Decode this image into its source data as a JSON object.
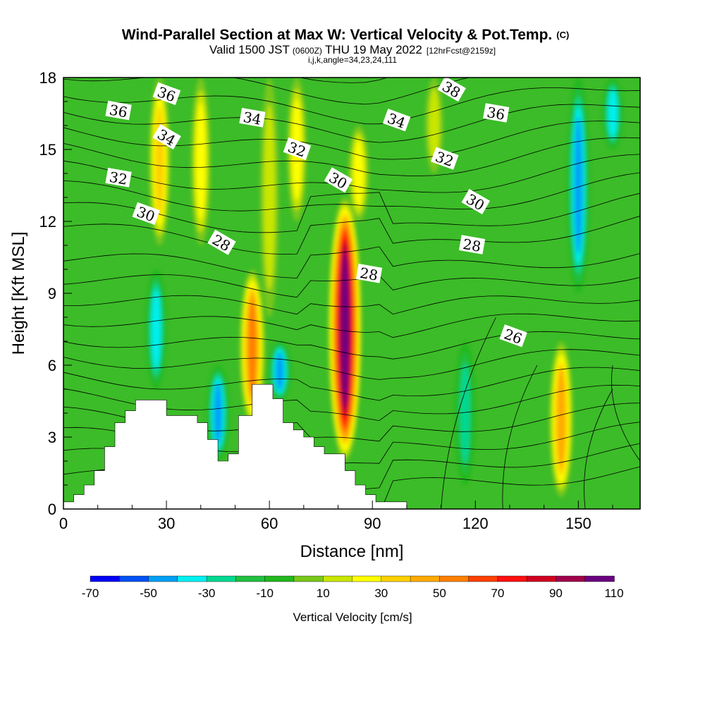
{
  "title": {
    "main": "Wind-Parallel Section at Max W: Vertical Velocity & Pot.Temp.",
    "main_tag": "(C)",
    "valid_a": "Valid 1500 JST",
    "valid_b": "(0600Z)",
    "valid_c": "THU 19 May 2022",
    "valid_d": "[12hrFcst@2159z]",
    "subline": "i,j,k,angle=34,23,24,111"
  },
  "chart_data": {
    "type": "heatmap",
    "xlabel": "Distance [nm]",
    "ylabel": "Height [Kft MSL]",
    "xlim": [
      0,
      168
    ],
    "ylim": [
      0,
      18
    ],
    "xticks": [
      0,
      30,
      60,
      90,
      120,
      150
    ],
    "xtick_labels": [
      "0",
      "30",
      "60",
      "90",
      "120",
      "150"
    ],
    "yticks": [
      0,
      3,
      6,
      9,
      12,
      15,
      18
    ],
    "ytick_labels": [
      "0",
      "3",
      "6",
      "9",
      "12",
      "15",
      "18"
    ],
    "colorbar": {
      "label": "Vertical Velocity [cm/s]",
      "levels": [
        -70,
        -60,
        -50,
        -40,
        -30,
        -20,
        -10,
        0,
        10,
        20,
        30,
        40,
        50,
        60,
        70,
        80,
        90,
        100,
        110
      ],
      "tick_labels": [
        "-70",
        "-50",
        "-30",
        "-10",
        "10",
        "30",
        "50",
        "70",
        "90",
        "110"
      ],
      "colors": [
        "#0000f5",
        "#0050f5",
        "#00a0f5",
        "#00f0f0",
        "#00d890",
        "#20c040",
        "#22b81e",
        "#78c81a",
        "#c8e600",
        "#ffff00",
        "#ffd000",
        "#ffaa00",
        "#ff8000",
        "#ff4000",
        "#ff1010",
        "#d00020",
        "#a0004a",
        "#6a0080"
      ]
    },
    "vertical_velocity_features": [
      {
        "x": 28,
        "y": [
          11,
          18
        ],
        "w": 35,
        "desc": "updraft"
      },
      {
        "x": 40,
        "y": [
          11,
          18
        ],
        "w": 25
      },
      {
        "x": 55,
        "y": [
          3.5,
          10
        ],
        "w": 60
      },
      {
        "x": 60,
        "y": [
          8,
          18
        ],
        "w": 20
      },
      {
        "x": 68,
        "y": [
          12,
          18
        ],
        "w": 25
      },
      {
        "x": 82,
        "y": [
          2,
          13
        ],
        "w": 110
      },
      {
        "x": 86,
        "y": [
          12,
          16
        ],
        "w": 30
      },
      {
        "x": 145,
        "y": [
          0.5,
          7
        ],
        "w": 50
      },
      {
        "x": 108,
        "y": [
          14,
          18
        ],
        "w": 15
      },
      {
        "x": 27,
        "y": [
          5,
          10
        ],
        "w": -35,
        "desc": "downdraft"
      },
      {
        "x": 45,
        "y": [
          2,
          6
        ],
        "w": -45
      },
      {
        "x": 63,
        "y": [
          4.5,
          7
        ],
        "w": -45
      },
      {
        "x": 117,
        "y": [
          1,
          7
        ],
        "w": -30
      },
      {
        "x": 150,
        "y": [
          9,
          18
        ],
        "w": -45
      },
      {
        "x": 160,
        "y": [
          15,
          18
        ],
        "w": -35
      }
    ],
    "potential_temperature_contours": {
      "units": "C",
      "labels": [
        {
          "value": "36",
          "x": 16,
          "y": 16.6
        },
        {
          "value": "36",
          "x": 30,
          "y": 17.3
        },
        {
          "value": "34",
          "x": 30,
          "y": 15.5
        },
        {
          "value": "32",
          "x": 16,
          "y": 13.8
        },
        {
          "value": "30",
          "x": 24,
          "y": 12.3
        },
        {
          "value": "28",
          "x": 46,
          "y": 11.1
        },
        {
          "value": "34",
          "x": 55,
          "y": 16.3
        },
        {
          "value": "32",
          "x": 68,
          "y": 15
        },
        {
          "value": "30",
          "x": 80,
          "y": 13.7
        },
        {
          "value": "28",
          "x": 89,
          "y": 9.8
        },
        {
          "value": "34",
          "x": 97,
          "y": 16.2
        },
        {
          "value": "38",
          "x": 113,
          "y": 17.5
        },
        {
          "value": "36",
          "x": 126,
          "y": 16.5
        },
        {
          "value": "32",
          "x": 111,
          "y": 14.6
        },
        {
          "value": "30",
          "x": 120,
          "y": 12.8
        },
        {
          "value": "28",
          "x": 119,
          "y": 11
        },
        {
          "value": "26",
          "x": 131,
          "y": 7.2
        }
      ]
    },
    "terrain_profile": {
      "x": [
        0,
        3,
        3,
        6,
        6,
        9,
        9,
        12,
        12,
        15,
        15,
        18,
        18,
        21,
        21,
        30,
        30,
        39,
        39,
        42,
        42,
        45,
        45,
        48,
        48,
        51,
        51,
        55,
        55,
        61,
        61,
        64,
        64,
        67,
        67,
        70,
        70,
        73,
        73,
        76,
        76,
        82,
        82,
        85,
        85,
        88,
        88,
        91,
        91,
        100,
        100,
        168
      ],
      "y": [
        0.3,
        0.3,
        0.6,
        0.6,
        1,
        1,
        1.6,
        1.6,
        2.6,
        2.6,
        3.6,
        3.6,
        4.1,
        4.1,
        4.55,
        4.55,
        3.9,
        3.9,
        3.6,
        3.6,
        2.9,
        2.9,
        2.0,
        2.0,
        2.3,
        2.3,
        3.9,
        3.9,
        5.2,
        5.2,
        4.6,
        4.6,
        3.6,
        3.6,
        3.3,
        3.3,
        3.0,
        3.0,
        2.6,
        2.6,
        2.3,
        2.3,
        1.6,
        1.6,
        1.0,
        1.0,
        0.6,
        0.6,
        0.3,
        0.3,
        0,
        0
      ]
    }
  }
}
